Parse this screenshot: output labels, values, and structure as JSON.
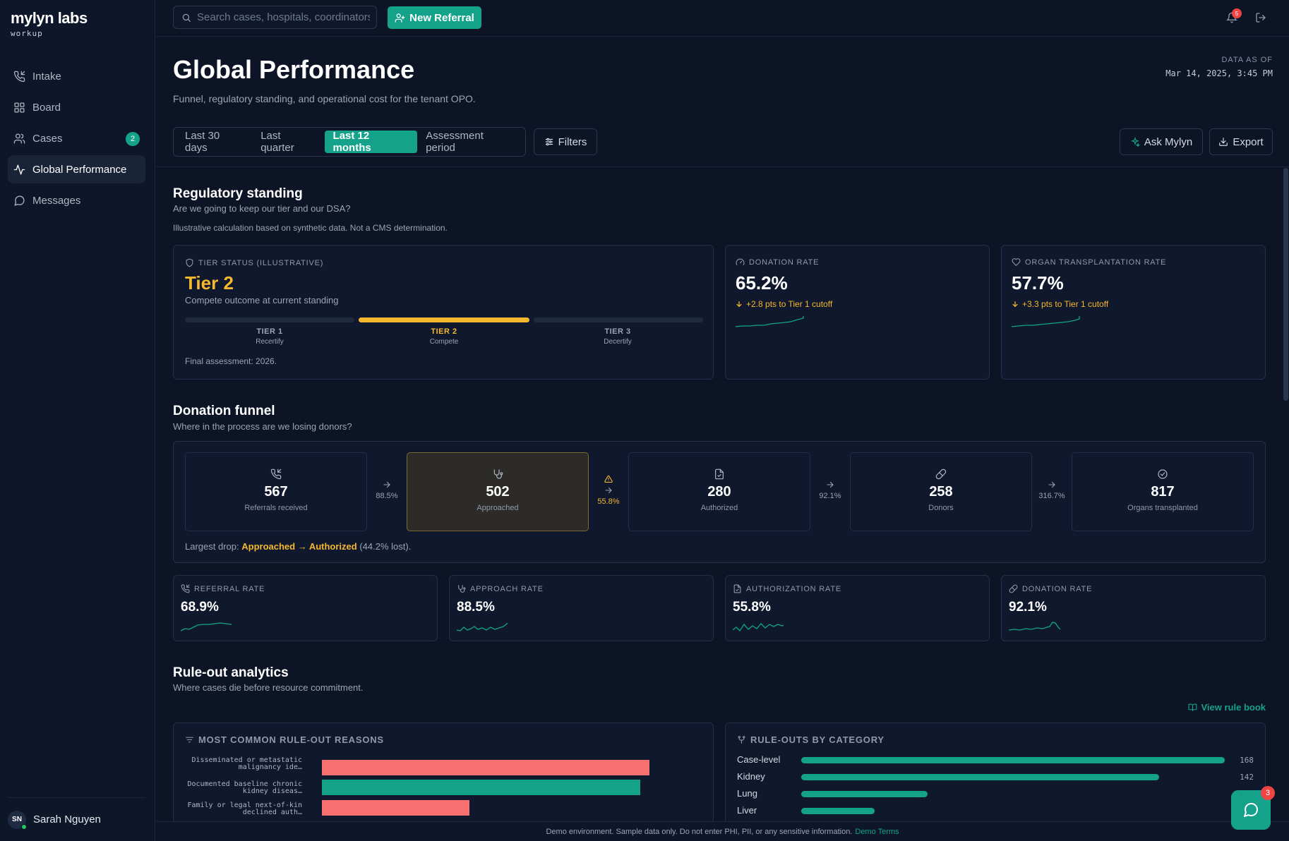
{
  "app": {
    "logo": "mylyn labs",
    "logo_sub": "workup"
  },
  "sidebar": {
    "items": [
      {
        "label": "Intake",
        "icon": "phone-incoming-icon"
      },
      {
        "label": "Board",
        "icon": "grid-icon"
      },
      {
        "label": "Cases",
        "icon": "users-icon",
        "badge": "2"
      },
      {
        "label": "Global Performance",
        "icon": "activity-icon",
        "active": true
      },
      {
        "label": "Messages",
        "icon": "message-circle-icon"
      }
    ],
    "user": {
      "initials": "SN",
      "name": "Sarah Nguyen"
    }
  },
  "topbar": {
    "search_placeholder": "Search cases, hospitals, coordinators…",
    "new_referral": "New Referral",
    "notifications": "5"
  },
  "header": {
    "title": "Global Performance",
    "subtitle": "Funnel, regulatory standing, and operational cost for the tenant OPO.",
    "data_as_of_label": "DATA AS OF",
    "data_as_of": "Mar 14, 2025, 3:45 PM",
    "ranges": [
      "Last 30 days",
      "Last quarter",
      "Last 12 months",
      "Assessment period"
    ],
    "active_range": "Last 12 months",
    "filters": "Filters",
    "ask": "Ask Mylyn",
    "export": "Export"
  },
  "regulatory": {
    "title": "Regulatory standing",
    "subtitle": "Are we going to keep our tier and our DSA?",
    "note": "Illustrative calculation based on synthetic data. Not a CMS determination.",
    "tier": {
      "label": "TIER STATUS (ILLUSTRATIVE)",
      "value": "Tier 2",
      "desc": "Compete outcome at current standing",
      "tiers": [
        {
          "name": "TIER 1",
          "sub": "Recertify"
        },
        {
          "name": "TIER 2",
          "sub": "Compete"
        },
        {
          "name": "TIER 3",
          "sub": "Decertify"
        }
      ],
      "final": "Final assessment: 2026."
    },
    "kpis": [
      {
        "label": "DONATION RATE",
        "value": "65.2%",
        "delta": "+2.8 pts to Tier 1 cutoff"
      },
      {
        "label": "ORGAN TRANSPLANTATION RATE",
        "value": "57.7%",
        "delta": "+3.3 pts to Tier 1 cutoff"
      }
    ]
  },
  "funnel": {
    "title": "Donation funnel",
    "subtitle": "Where in the process are we losing donors?",
    "stages": [
      {
        "value": "567",
        "label": "Referrals received"
      },
      {
        "value": "502",
        "label": "Approached"
      },
      {
        "value": "280",
        "label": "Authorized"
      },
      {
        "value": "258",
        "label": "Donors"
      },
      {
        "value": "817",
        "label": "Organs transplanted"
      }
    ],
    "conversions": [
      "88.5%",
      "55.8%",
      "92.1%",
      "316.7%"
    ],
    "drop_prefix": "Largest drop:",
    "drop_stage": "Approached → Authorized",
    "drop_suffix": "(44.2% lost)."
  },
  "rates": [
    {
      "label": "REFERRAL RATE",
      "value": "68.9%"
    },
    {
      "label": "APPROACH RATE",
      "value": "88.5%"
    },
    {
      "label": "AUTHORIZATION RATE",
      "value": "55.8%"
    },
    {
      "label": "DONATION RATE",
      "value": "92.1%"
    }
  ],
  "ruleouts": {
    "title": "Rule-out analytics",
    "subtitle": "Where cases die before resource commitment.",
    "rulebook": "View rule book",
    "reasons_title": "MOST COMMON RULE-OUT REASONS",
    "categories_title": "RULE-OUTS BY CATEGORY",
    "reasons": [
      {
        "label": "Disseminated or metastatic malignancy ide…",
        "color": "#f87171"
      },
      {
        "label": "Documented baseline chronic kidney diseas…",
        "color": "#14a38a"
      },
      {
        "label": "Family or legal next-of-kin declined auth…",
        "color": "#f87171"
      }
    ],
    "categories": [
      {
        "label": "Case-level",
        "value": "168"
      },
      {
        "label": "Kidney",
        "value": "142"
      },
      {
        "label": "Lung",
        "value": ""
      },
      {
        "label": "Liver",
        "value": ""
      }
    ]
  },
  "footer": {
    "text": "Demo environment. Sample data only. Do not enter PHI, PII, or any sensitive information.",
    "link": "Demo Terms"
  },
  "chat": {
    "badge": "3"
  }
}
